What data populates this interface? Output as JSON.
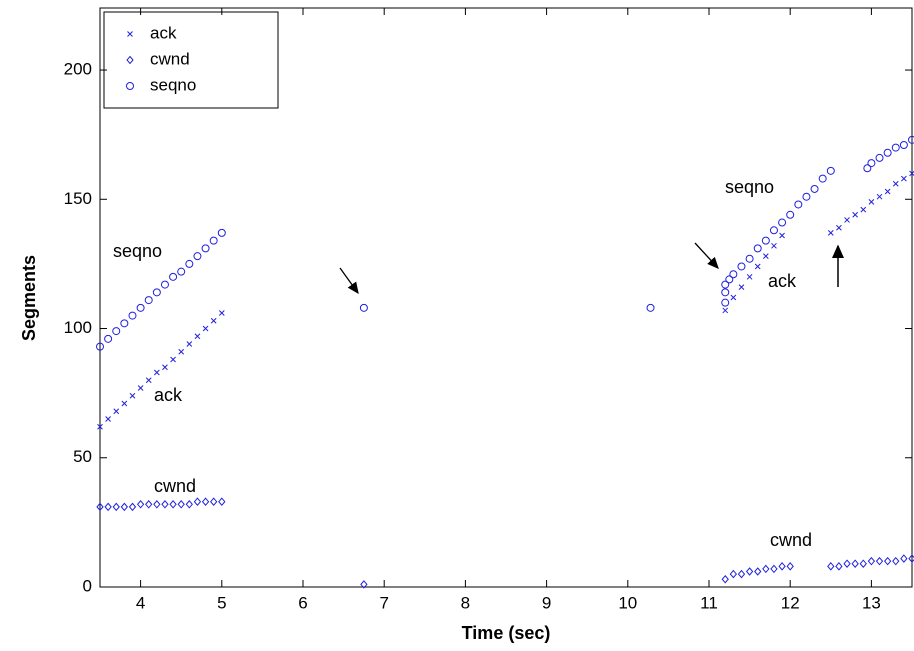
{
  "chart_data": {
    "type": "scatter",
    "xlabel": "Time (sec)",
    "ylabel": "Segments",
    "xlim": [
      3.5,
      13.5
    ],
    "ylim": [
      0,
      224
    ],
    "xticks": [
      4,
      5,
      6,
      7,
      8,
      9,
      10,
      11,
      12,
      13
    ],
    "yticks": [
      0,
      50,
      100,
      150,
      200
    ],
    "legend": "upper left",
    "annotations": [
      "seqno",
      "ack",
      "cwnd",
      "seqno",
      "ack",
      "cwnd"
    ],
    "series": [
      {
        "name": "ack",
        "color": "#2020e0",
        "marker": "x",
        "x": [
          3.5,
          3.6,
          3.7,
          3.8,
          3.9,
          4.0,
          4.1,
          4.2,
          4.3,
          4.4,
          4.5,
          4.6,
          4.7,
          4.8,
          4.9,
          5.0,
          11.2,
          11.3,
          11.4,
          11.5,
          11.6,
          11.7,
          11.8,
          11.9,
          12.5,
          12.6,
          12.7,
          12.8,
          12.9,
          13.0,
          13.1,
          13.2,
          13.3,
          13.4,
          13.5
        ],
        "values": [
          62,
          65,
          68,
          71,
          74,
          77,
          80,
          83,
          85,
          88,
          91,
          94,
          97,
          100,
          103,
          106,
          107,
          112,
          116,
          120,
          124,
          128,
          132,
          136,
          137,
          139,
          142,
          144,
          146,
          149,
          151,
          153,
          156,
          158,
          160
        ]
      },
      {
        "name": "cwnd",
        "color": "#2020e0",
        "marker": "diamond",
        "x": [
          3.5,
          3.6,
          3.7,
          3.8,
          3.9,
          4.0,
          4.1,
          4.2,
          4.3,
          4.4,
          4.5,
          4.6,
          4.7,
          4.8,
          4.9,
          5.0,
          6.75,
          11.2,
          11.3,
          11.4,
          11.5,
          11.6,
          11.7,
          11.8,
          11.9,
          12.0,
          12.5,
          12.6,
          12.7,
          12.8,
          12.9,
          13.0,
          13.1,
          13.2,
          13.3,
          13.4,
          13.5
        ],
        "values": [
          31,
          31,
          31,
          31,
          31,
          32,
          32,
          32,
          32,
          32,
          32,
          32,
          33,
          33,
          33,
          33,
          1,
          3,
          5,
          5,
          6,
          6,
          7,
          7,
          8,
          8,
          8,
          8,
          9,
          9,
          9,
          10,
          10,
          10,
          10,
          11,
          11
        ]
      },
      {
        "name": "seqno",
        "color": "#2020e0",
        "marker": "circle",
        "x": [
          3.5,
          3.6,
          3.7,
          3.8,
          3.9,
          4.0,
          4.1,
          4.2,
          4.3,
          4.4,
          4.5,
          4.6,
          4.7,
          4.8,
          4.9,
          5.0,
          6.75,
          10.28,
          11.2,
          11.2,
          11.2,
          11.25,
          11.3,
          11.4,
          11.5,
          11.6,
          11.7,
          11.8,
          11.9,
          12.0,
          12.1,
          12.2,
          12.3,
          12.4,
          12.5,
          12.95,
          13.0,
          13.1,
          13.2,
          13.3,
          13.4,
          13.5
        ],
        "values": [
          93,
          96,
          99,
          102,
          105,
          108,
          111,
          114,
          117,
          120,
          122,
          125,
          128,
          131,
          134,
          137,
          108,
          108,
          110,
          114,
          117,
          119,
          121,
          124,
          127,
          131,
          134,
          138,
          141,
          144,
          148,
          151,
          154,
          158,
          161,
          162,
          164,
          166,
          168,
          170,
          171,
          173
        ]
      }
    ]
  }
}
